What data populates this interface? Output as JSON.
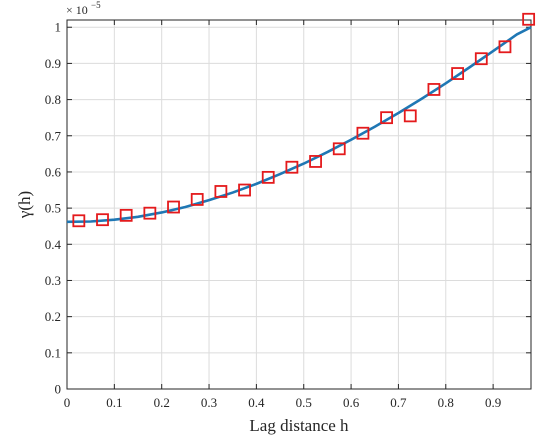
{
  "chart_data": {
    "type": "scatter",
    "title": "",
    "xlabel": "Lag distance h",
    "ylabel": "γ(h)",
    "y_multiplier": "× 10",
    "y_multiplier_exponent": "−5",
    "xlim": [
      0,
      0.98
    ],
    "ylim": [
      0,
      1.02
    ],
    "x_ticks": [
      "0",
      "0.1",
      "0.2",
      "0.3",
      "0.4",
      "0.5",
      "0.6",
      "0.7",
      "0.8",
      "0.9"
    ],
    "y_ticks": [
      "0",
      "0.1",
      "0.2",
      "0.3",
      "0.4",
      "0.5",
      "0.6",
      "0.7",
      "0.8",
      "0.9",
      "1"
    ],
    "grid": true,
    "legend": "none",
    "series": [
      {
        "kind": "markers",
        "marker": "square",
        "color": "#e41a1c",
        "x": [
          0.025,
          0.075,
          0.125,
          0.175,
          0.225,
          0.275,
          0.325,
          0.375,
          0.425,
          0.475,
          0.525,
          0.575,
          0.625,
          0.675,
          0.725,
          0.775,
          0.825,
          0.875,
          0.925,
          0.975
        ],
        "y": [
          0.465,
          0.468,
          0.48,
          0.486,
          0.503,
          0.524,
          0.546,
          0.55,
          0.585,
          0.613,
          0.629,
          0.664,
          0.707,
          0.75,
          0.755,
          0.828,
          0.872,
          0.913,
          0.946,
          1.022
        ]
      },
      {
        "kind": "line",
        "color": "#1f77b4",
        "x": [
          0,
          0.05,
          0.1,
          0.15,
          0.2,
          0.25,
          0.3,
          0.35,
          0.4,
          0.45,
          0.5,
          0.55,
          0.6,
          0.65,
          0.7,
          0.75,
          0.8,
          0.85,
          0.9,
          0.95,
          0.98
        ],
        "y": [
          0.462,
          0.463,
          0.468,
          0.476,
          0.488,
          0.503,
          0.522,
          0.543,
          0.567,
          0.594,
          0.623,
          0.655,
          0.689,
          0.725,
          0.763,
          0.803,
          0.845,
          0.889,
          0.934,
          0.98,
          1.0
        ]
      }
    ]
  }
}
